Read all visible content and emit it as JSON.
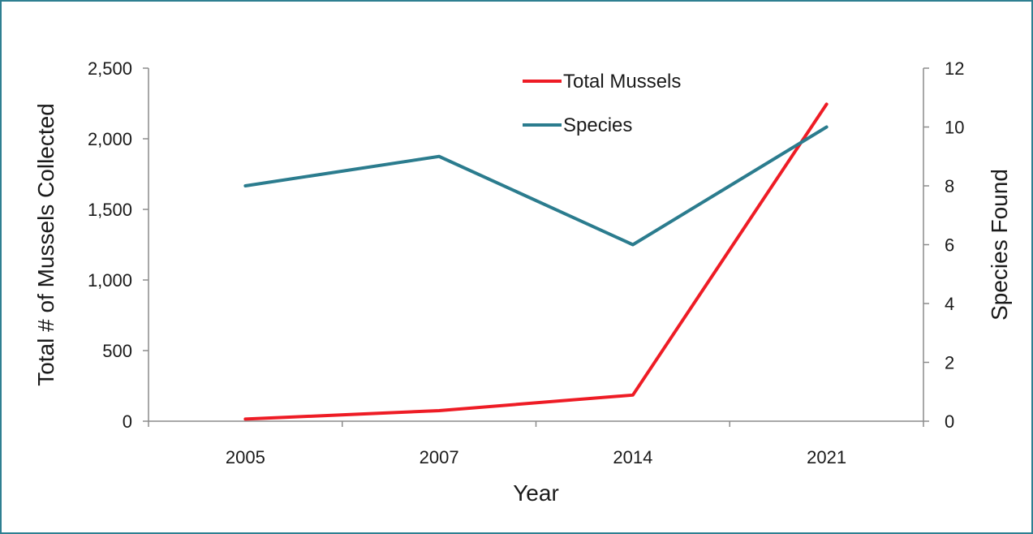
{
  "chart_data": {
    "type": "line",
    "categories": [
      "2005",
      "2007",
      "2014",
      "2021"
    ],
    "xlabel": "Year",
    "ylabel": "Total # of Mussels Collected",
    "y2label": "Species Found",
    "ylim": [
      0,
      2500
    ],
    "y2lim": [
      0,
      12
    ],
    "yticks": [
      "0",
      "500",
      "1,000",
      "1,500",
      "2,000",
      "2,500"
    ],
    "y2ticks": [
      "0",
      "2",
      "4",
      "6",
      "8",
      "10",
      "12"
    ],
    "series": [
      {
        "name": "Total Mussels",
        "axis": "left",
        "color": "#ee1c25",
        "values": [
          15,
          75,
          185,
          2245
        ]
      },
      {
        "name": "Species",
        "axis": "right",
        "color": "#2b7c8e",
        "values": [
          8,
          9,
          6,
          10
        ]
      }
    ],
    "legend_position": "top-center",
    "grid": false
  }
}
